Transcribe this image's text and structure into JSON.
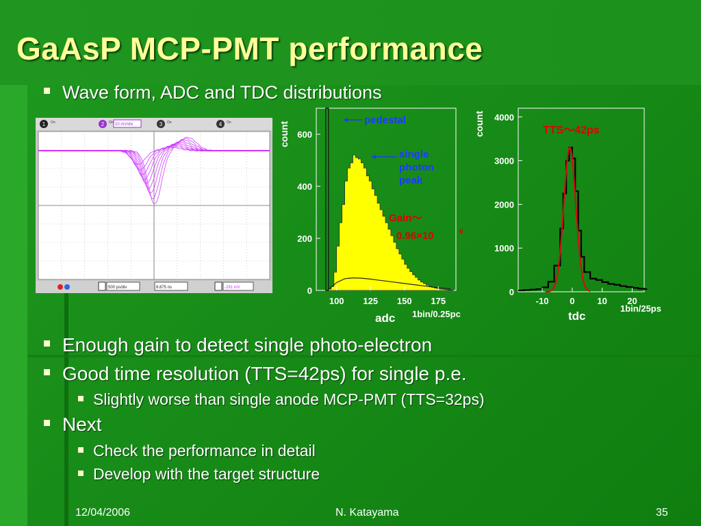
{
  "slide": {
    "title": "GaAsP MCP-PMT performance",
    "bullets": [
      {
        "text": "Wave form, ADC and TDC distributions"
      },
      {
        "text": "Enough gain to detect single photo-electron"
      },
      {
        "text": "Good time resolution (TTS=42ps) for single p.e."
      },
      {
        "text": "Slightly worse than single anode MCP-PMT (TTS=32ps)"
      },
      {
        "text": "Next"
      },
      {
        "text": "Check the performance in detail"
      },
      {
        "text": "Develop with the target structure"
      }
    ],
    "footer": {
      "date": "12/04/2006",
      "author": "N. Katayama",
      "page": "35"
    }
  },
  "colors": {
    "background": "#188c18",
    "title": "#ffff99",
    "bullet_marker": "#ffffcc",
    "adc_fill": "#ffff00",
    "fit_line": "#d01010",
    "annotation_blue": "#1a3cff",
    "annotation_red": "#e00000",
    "waveform": "#cc33ff"
  },
  "oscilloscope": {
    "ch1": "1",
    "ch1_state": "On",
    "ch2": "2",
    "ch2_state": "On",
    "ch2_scale": "10 mV/div",
    "ch3": "3",
    "ch3_state": "On",
    "ch4": "4",
    "ch4_state": "On",
    "timebase": "500 ps/div",
    "delay": "8.875 ns",
    "trigger": "-281 mV"
  },
  "chart_data": [
    {
      "type": "histogram",
      "ylabel": "count",
      "xlabel": "adc",
      "bin_note": "1bin/0.25pc",
      "x_ticks": [
        "100",
        "125",
        "150",
        "175"
      ],
      "y_ticks": [
        "0",
        "200",
        "400",
        "600"
      ],
      "xlim": [
        85,
        188
      ],
      "ylim": [
        0,
        700
      ],
      "annotations": {
        "pedestal": "pedestal",
        "single_photon_peak": "single photon peak",
        "gain_label": "Gain～",
        "gain_value": "0.96×10",
        "gain_exp": "6"
      },
      "pedestal": {
        "x": [
          92,
          94
        ],
        "y": [
          0,
          700
        ]
      },
      "signal": {
        "x": [
          94,
          96,
          98,
          100,
          102,
          104,
          106,
          108,
          110,
          112,
          114,
          116,
          118,
          120,
          122,
          124,
          126,
          128,
          130,
          132,
          134,
          136,
          138,
          140,
          142,
          144,
          146,
          148,
          150,
          152,
          154,
          156,
          158,
          160,
          162,
          164,
          166,
          168,
          170,
          172,
          174,
          176,
          178,
          180,
          182,
          184
        ],
        "y": [
          5,
          15,
          70,
          170,
          260,
          330,
          420,
          470,
          490,
          520,
          510,
          505,
          490,
          470,
          440,
          420,
          390,
          365,
          335,
          310,
          285,
          260,
          235,
          210,
          185,
          160,
          140,
          120,
          100,
          85,
          72,
          60,
          50,
          40,
          32,
          26,
          20,
          16,
          12,
          9,
          7,
          5,
          4,
          3,
          2,
          1
        ]
      },
      "dark": {
        "x": [
          94,
          100,
          106,
          112,
          118,
          124,
          130,
          136,
          142,
          148,
          154,
          160,
          166,
          172,
          178,
          184
        ],
        "y": [
          4,
          30,
          45,
          48,
          47,
          44,
          40,
          36,
          32,
          28,
          24,
          20,
          16,
          12,
          9,
          6
        ]
      }
    },
    {
      "type": "histogram",
      "ylabel": "count",
      "xlabel": "tdc",
      "bin_note": "1bin/25ps",
      "x_ticks": [
        "-10",
        "0",
        "10",
        "20"
      ],
      "y_ticks": [
        "0",
        "1000",
        "2000",
        "3000",
        "4000"
      ],
      "xlim": [
        -18,
        24
      ],
      "ylim": [
        0,
        4200
      ],
      "annotations": {
        "tts": "TTS～42ps"
      },
      "hist": {
        "x": [
          -18,
          -16,
          -14,
          -12,
          -10,
          -8,
          -6,
          -4,
          -3,
          -2,
          -1,
          0,
          1,
          2,
          3,
          4,
          6,
          8,
          10,
          12,
          14,
          16,
          18,
          20,
          22,
          24
        ],
        "y": [
          30,
          40,
          50,
          60,
          100,
          230,
          600,
          1450,
          2250,
          3000,
          3300,
          3050,
          2300,
          1400,
          800,
          450,
          300,
          270,
          220,
          180,
          160,
          130,
          110,
          90,
          70,
          60
        ]
      },
      "fit": {
        "mean": -0.8,
        "sigma": 2.0,
        "amplitude": 3300
      }
    }
  ]
}
